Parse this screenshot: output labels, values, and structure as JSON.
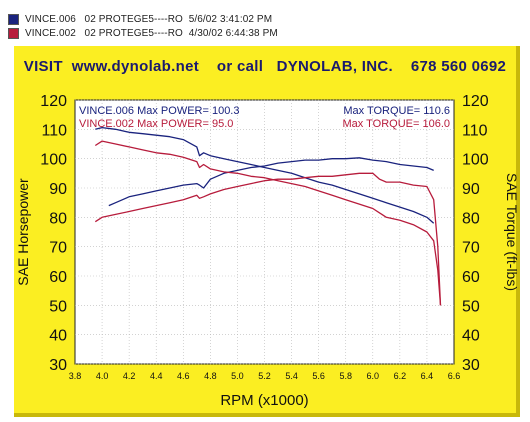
{
  "legend": [
    {
      "label": "VINCE.006   02 PROTEGE5----RO  5/6/02 3:41:02 PM",
      "color": "#1a237e"
    },
    {
      "label": "VINCE.002   02 PROTEGE5----RO  4/30/02 6:44:38 PM",
      "color": "#b71c3c"
    }
  ],
  "banner": "VISIT  www.dynolab.net    or call   DYNOLAB, INC.    678 560 0692",
  "chart_data": {
    "type": "line",
    "xlabel": "RPM (x1000)",
    "ylabel_left": "SAE Horsepower",
    "ylabel_right": "SAE Torque (ft-lbs)",
    "xlim": [
      3.8,
      6.6
    ],
    "ylim": [
      30,
      120
    ],
    "x_ticks": [
      "3.8",
      "4.0",
      "4.2",
      "4.4",
      "4.6",
      "4.8",
      "5.0",
      "5.2",
      "5.4",
      "5.6",
      "5.8",
      "6.0",
      "6.2",
      "6.4",
      "6.6"
    ],
    "y_ticks": [
      "30",
      "40",
      "50",
      "60",
      "70",
      "80",
      "90",
      "100",
      "110",
      "120"
    ],
    "grid": true,
    "annotations": [
      {
        "text": "VINCE.006  Max POWER= 100.3",
        "color": "#1a237e",
        "pos": "top-left",
        "row": 0
      },
      {
        "text": "VINCE.002  Max POWER= 95.0",
        "color": "#b71c3c",
        "pos": "top-left",
        "row": 1
      },
      {
        "text": "Max TORQUE= 110.6",
        "color": "#1a237e",
        "pos": "top-right",
        "row": 0
      },
      {
        "text": "Max TORQUE= 106.0",
        "color": "#b71c3c",
        "pos": "top-right",
        "row": 1
      }
    ],
    "series": [
      {
        "name": "VINCE.006",
        "kind": "power",
        "color": "#1a237e",
        "x": [
          4.05,
          4.1,
          4.2,
          4.3,
          4.4,
          4.5,
          4.6,
          4.7,
          4.72,
          4.75,
          4.8,
          4.9,
          5.0,
          5.1,
          5.2,
          5.3,
          5.4,
          5.5,
          5.6,
          5.7,
          5.8,
          5.9,
          6.0,
          6.1,
          6.2,
          6.3,
          6.4,
          6.45
        ],
        "y": [
          84,
          85,
          87,
          88,
          89,
          90,
          91,
          91.5,
          91,
          90,
          93,
          95,
          96,
          97,
          97.5,
          98.5,
          99,
          99.5,
          99.5,
          100,
          100,
          100.3,
          99.5,
          99,
          98,
          97.5,
          97,
          96
        ]
      },
      {
        "name": "VINCE.006",
        "kind": "torque",
        "color": "#1a237e",
        "x": [
          3.95,
          4.0,
          4.1,
          4.2,
          4.3,
          4.4,
          4.5,
          4.6,
          4.7,
          4.72,
          4.75,
          4.8,
          4.9,
          5.0,
          5.1,
          5.2,
          5.3,
          5.4,
          5.5,
          5.6,
          5.7,
          5.8,
          5.9,
          6.0,
          6.1,
          6.2,
          6.3,
          6.4,
          6.45
        ],
        "y": [
          110,
          110.6,
          110,
          109,
          108.5,
          108,
          107.5,
          106.5,
          104,
          101,
          102,
          101,
          100,
          99,
          98,
          97,
          96,
          95,
          93.5,
          92,
          91,
          89.5,
          88,
          86.5,
          85,
          83.5,
          82,
          80,
          78
        ]
      },
      {
        "name": "VINCE.002",
        "kind": "power",
        "color": "#b71c3c",
        "x": [
          3.95,
          4.0,
          4.1,
          4.2,
          4.3,
          4.4,
          4.5,
          4.6,
          4.7,
          4.72,
          4.75,
          4.8,
          4.9,
          5.0,
          5.1,
          5.2,
          5.3,
          5.4,
          5.5,
          5.6,
          5.7,
          5.8,
          5.9,
          6.0,
          6.05,
          6.1,
          6.2,
          6.3,
          6.4,
          6.45,
          6.48,
          6.5
        ],
        "y": [
          78.5,
          80,
          81,
          82,
          83,
          84,
          85,
          86,
          87.5,
          86.5,
          87,
          88,
          89.5,
          90.5,
          91.5,
          92.5,
          93,
          93,
          93.5,
          94,
          94,
          94.5,
          95,
          95,
          93,
          92,
          92,
          91,
          90.5,
          86,
          70,
          50
        ]
      },
      {
        "name": "VINCE.002",
        "kind": "torque",
        "color": "#b71c3c",
        "x": [
          3.95,
          4.0,
          4.1,
          4.2,
          4.3,
          4.4,
          4.5,
          4.6,
          4.7,
          4.72,
          4.75,
          4.8,
          4.9,
          5.0,
          5.1,
          5.2,
          5.3,
          5.4,
          5.5,
          5.6,
          5.7,
          5.8,
          5.9,
          6.0,
          6.05,
          6.1,
          6.2,
          6.3,
          6.4,
          6.45,
          6.48,
          6.5
        ],
        "y": [
          104.5,
          106,
          105,
          104,
          103,
          102,
          101.5,
          100.5,
          99,
          97,
          98,
          96.5,
          95.5,
          95,
          94,
          93.5,
          92.5,
          91.5,
          90.5,
          89,
          87.5,
          86,
          84.5,
          83,
          81.5,
          80,
          79,
          77.5,
          75,
          72,
          62,
          50
        ]
      }
    ]
  }
}
